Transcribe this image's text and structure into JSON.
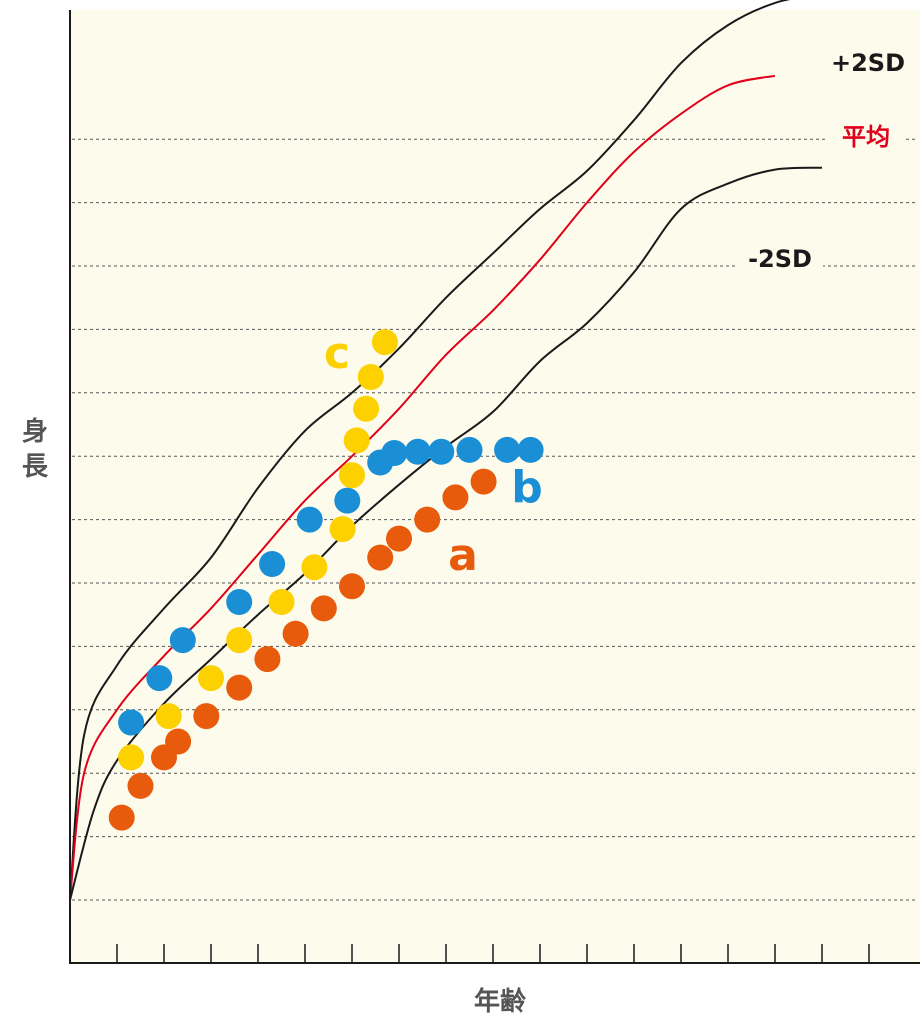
{
  "chart_data": {
    "type": "scatter",
    "title": "",
    "xlabel": "年齢",
    "ylabel": "身長",
    "x_ticks": 17,
    "grid_lines": 13,
    "grid": true,
    "background_color": "#fdfbeb",
    "colors": {
      "a": "#e85a0c",
      "b": "#1a8fd6",
      "c": "#fdd000",
      "sd_line": "#1a1a1a",
      "mean_line": "#e0001b"
    },
    "reference_lines": [
      {
        "name": "+2SD",
        "color": "#1a1a1a",
        "points": [
          [
            0,
            0
          ],
          [
            0.3,
            2.6
          ],
          [
            1,
            3.7
          ],
          [
            2,
            4.6
          ],
          [
            3,
            5.4
          ],
          [
            4,
            6.5
          ],
          [
            5,
            7.4
          ],
          [
            6,
            8.0
          ],
          [
            7,
            8.7
          ],
          [
            8,
            9.5
          ],
          [
            9,
            10.2
          ],
          [
            10,
            10.9
          ],
          [
            11,
            11.5
          ],
          [
            12,
            12.3
          ],
          [
            13,
            13.2
          ],
          [
            14,
            13.8
          ],
          [
            15,
            14.15
          ],
          [
            16,
            14.3
          ]
        ]
      },
      {
        "name": "平均",
        "color": "#e0001b",
        "points": [
          [
            0,
            0
          ],
          [
            0.3,
            2.0
          ],
          [
            1,
            3.0
          ],
          [
            2,
            3.85
          ],
          [
            3,
            4.6
          ],
          [
            4,
            5.45
          ],
          [
            5,
            6.3
          ],
          [
            6,
            7.0
          ],
          [
            7,
            7.75
          ],
          [
            8,
            8.6
          ],
          [
            9,
            9.3
          ],
          [
            10,
            10.1
          ],
          [
            11,
            11.0
          ],
          [
            12,
            11.8
          ],
          [
            13,
            12.4
          ],
          [
            14,
            12.85
          ],
          [
            15,
            13.0
          ]
        ]
      },
      {
        "name": "-2SD",
        "color": "#1a1a1a",
        "points": [
          [
            0,
            0
          ],
          [
            0.5,
            1.4
          ],
          [
            1,
            2.2
          ],
          [
            2,
            3.1
          ],
          [
            3,
            3.8
          ],
          [
            4,
            4.5
          ],
          [
            5,
            5.15
          ],
          [
            6,
            5.9
          ],
          [
            7,
            6.55
          ],
          [
            8,
            7.15
          ],
          [
            9,
            7.7
          ],
          [
            10,
            8.5
          ],
          [
            11,
            9.1
          ],
          [
            12,
            9.9
          ],
          [
            13,
            10.9
          ],
          [
            14,
            11.3
          ],
          [
            15,
            11.52
          ],
          [
            16,
            11.55
          ]
        ]
      }
    ],
    "series": [
      {
        "name": "a",
        "color": "#e85a0c",
        "points": [
          [
            1.1,
            1.3
          ],
          [
            1.5,
            1.8
          ],
          [
            2.0,
            2.25
          ],
          [
            2.3,
            2.5
          ],
          [
            2.9,
            2.9
          ],
          [
            3.6,
            3.35
          ],
          [
            4.2,
            3.8
          ],
          [
            4.8,
            4.2
          ],
          [
            5.4,
            4.6
          ],
          [
            6.0,
            4.95
          ],
          [
            6.6,
            5.4
          ],
          [
            7.0,
            5.7
          ],
          [
            7.6,
            6.0
          ],
          [
            8.2,
            6.35
          ],
          [
            8.8,
            6.6
          ]
        ]
      },
      {
        "name": "b",
        "color": "#1a8fd6",
        "points": [
          [
            1.3,
            2.8
          ],
          [
            1.9,
            3.5
          ],
          [
            2.4,
            4.1
          ],
          [
            3.6,
            4.7
          ],
          [
            4.3,
            5.3
          ],
          [
            5.1,
            6.0
          ],
          [
            5.9,
            6.3
          ],
          [
            6.6,
            6.9
          ],
          [
            6.9,
            7.05
          ],
          [
            7.4,
            7.07
          ],
          [
            7.9,
            7.07
          ],
          [
            8.5,
            7.1
          ],
          [
            9.3,
            7.1
          ],
          [
            9.8,
            7.1
          ]
        ]
      },
      {
        "name": "c",
        "color": "#fdd000",
        "points": [
          [
            1.3,
            2.25
          ],
          [
            2.1,
            2.9
          ],
          [
            3.0,
            3.5
          ],
          [
            3.6,
            4.1
          ],
          [
            4.5,
            4.7
          ],
          [
            5.2,
            5.25
          ],
          [
            5.8,
            5.85
          ],
          [
            6.0,
            6.7
          ],
          [
            6.1,
            7.25
          ],
          [
            6.3,
            7.75
          ],
          [
            6.4,
            8.25
          ],
          [
            6.7,
            8.8
          ]
        ]
      }
    ]
  }
}
